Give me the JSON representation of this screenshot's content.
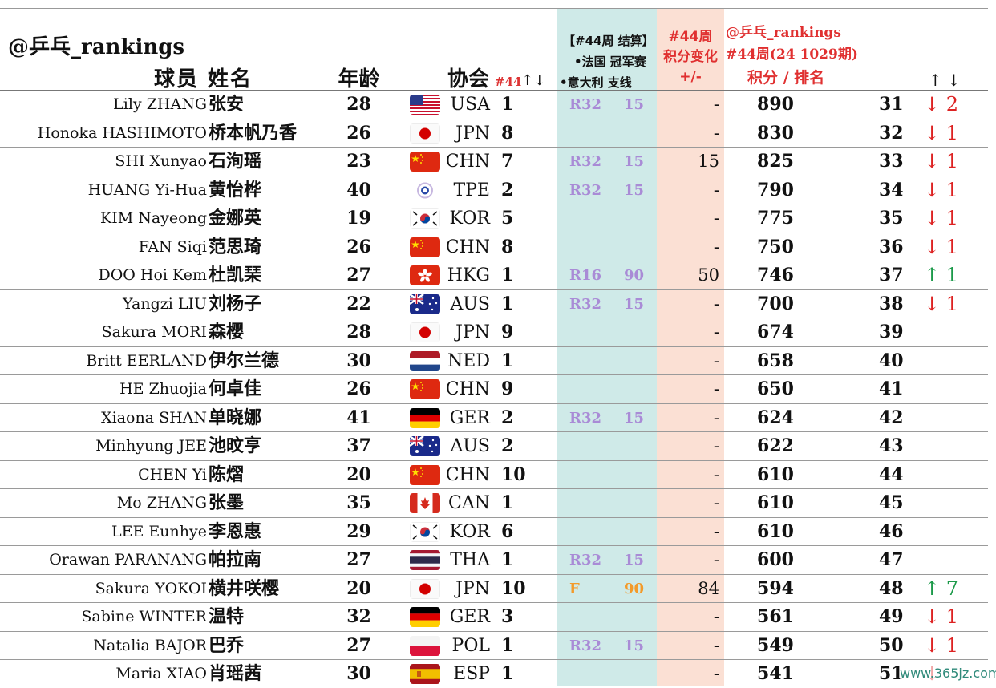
{
  "header": {
    "handle": "@乒乓_rankings",
    "col_name": "球员 姓名",
    "col_age": "年龄",
    "col_assoc": "协会",
    "col_rank44": "#44",
    "col_rank44_arrows": "↑↓",
    "week_title": "【#44周 结算】",
    "week_line1": "•法国 冠军赛",
    "week_line2": "•意大利 支线",
    "change_title1": "#44周",
    "change_title2": "积分变化",
    "change_title3": "+/-",
    "rank_title1": "@乒乓_rankings",
    "rank_title2": "#44周(24 1029期)",
    "rank_title3": "积分 /   排名",
    "move_arrows": "↑ ↓"
  },
  "colors": {
    "teal": "#cfeae8",
    "peach": "#fbe0d4",
    "red": "#e03030",
    "green": "#1c9a4a",
    "purple": "#a98bd6",
    "orange": "#f39a2a"
  },
  "rows": [
    {
      "en": "Lily ZHANG",
      "cn": "张安",
      "age": "28",
      "flag": "usa",
      "code": "USA",
      "crank": "1",
      "res": "R32",
      "pts": "15",
      "chg": "-",
      "score": "890",
      "rank": "31",
      "move": "↓ 2",
      "dir": "down"
    },
    {
      "en": "Honoka HASHIMOTO",
      "cn": "桥本帆乃香",
      "age": "26",
      "flag": "jpn",
      "code": "JPN",
      "crank": "8",
      "res": "",
      "pts": "",
      "chg": "-",
      "score": "830",
      "rank": "32",
      "move": "↓ 1",
      "dir": "down"
    },
    {
      "en": "SHI Xunyao",
      "cn": "石洵瑶",
      "age": "23",
      "flag": "chn",
      "code": "CHN",
      "crank": "7",
      "res": "R32",
      "pts": "15",
      "chg": "15",
      "score": "825",
      "rank": "33",
      "move": "↓ 1",
      "dir": "down"
    },
    {
      "en": "HUANG Yi-Hua",
      "cn": "黄怡桦",
      "age": "40",
      "flag": "tpe",
      "code": "TPE",
      "crank": "2",
      "res": "R32",
      "pts": "15",
      "chg": "-",
      "score": "790",
      "rank": "34",
      "move": "↓ 1",
      "dir": "down"
    },
    {
      "en": "KIM Nayeong",
      "cn": "金娜英",
      "age": "19",
      "flag": "kor",
      "code": "KOR",
      "crank": "5",
      "res": "",
      "pts": "",
      "chg": "-",
      "score": "775",
      "rank": "35",
      "move": "↓ 1",
      "dir": "down"
    },
    {
      "en": "FAN Siqi",
      "cn": "范思琦",
      "age": "26",
      "flag": "chn",
      "code": "CHN",
      "crank": "8",
      "res": "",
      "pts": "",
      "chg": "-",
      "score": "750",
      "rank": "36",
      "move": "↓ 1",
      "dir": "down"
    },
    {
      "en": "DOO Hoi Kem",
      "cn": "杜凯琹",
      "age": "27",
      "flag": "hkg",
      "code": "HKG",
      "crank": "1",
      "res": "R16",
      "pts": "90",
      "chg": "50",
      "score": "746",
      "rank": "37",
      "move": "↑ 1",
      "dir": "up"
    },
    {
      "en": "Yangzi LIU",
      "cn": "刘杨子",
      "age": "22",
      "flag": "aus",
      "code": "AUS",
      "crank": "1",
      "res": "R32",
      "pts": "15",
      "chg": "-",
      "score": "700",
      "rank": "38",
      "move": "↓ 1",
      "dir": "down"
    },
    {
      "en": "Sakura MORI",
      "cn": "森樱",
      "age": "28",
      "flag": "jpn",
      "code": "JPN",
      "crank": "9",
      "res": "",
      "pts": "",
      "chg": "-",
      "score": "674",
      "rank": "39",
      "move": "",
      "dir": ""
    },
    {
      "en": "Britt EERLAND",
      "cn": "伊尔兰德",
      "age": "30",
      "flag": "ned",
      "code": "NED",
      "crank": "1",
      "res": "",
      "pts": "",
      "chg": "-",
      "score": "658",
      "rank": "40",
      "move": "",
      "dir": ""
    },
    {
      "en": "HE Zhuojia",
      "cn": "何卓佳",
      "age": "26",
      "flag": "chn",
      "code": "CHN",
      "crank": "9",
      "res": "",
      "pts": "",
      "chg": "-",
      "score": "650",
      "rank": "41",
      "move": "",
      "dir": ""
    },
    {
      "en": "Xiaona SHAN",
      "cn": "单晓娜",
      "age": "41",
      "flag": "ger",
      "code": "GER",
      "crank": "2",
      "res": "R32",
      "pts": "15",
      "chg": "-",
      "score": "624",
      "rank": "42",
      "move": "",
      "dir": ""
    },
    {
      "en": "Minhyung JEE",
      "cn": "池旼亨",
      "age": "37",
      "flag": "aus",
      "code": "AUS",
      "crank": "2",
      "res": "",
      "pts": "",
      "chg": "-",
      "score": "622",
      "rank": "43",
      "move": "",
      "dir": ""
    },
    {
      "en": "CHEN Yi",
      "cn": "陈熠",
      "age": "20",
      "flag": "chn",
      "code": "CHN",
      "crank": "10",
      "res": "",
      "pts": "",
      "chg": "-",
      "score": "610",
      "rank": "44",
      "move": "",
      "dir": ""
    },
    {
      "en": "Mo ZHANG",
      "cn": "张墨",
      "age": "35",
      "flag": "can",
      "code": "CAN",
      "crank": "1",
      "res": "",
      "pts": "",
      "chg": "-",
      "score": "610",
      "rank": "45",
      "move": "",
      "dir": ""
    },
    {
      "en": "LEE Eunhye",
      "cn": "李恩惠",
      "age": "29",
      "flag": "kor",
      "code": "KOR",
      "crank": "6",
      "res": "",
      "pts": "",
      "chg": "-",
      "score": "610",
      "rank": "46",
      "move": "",
      "dir": ""
    },
    {
      "en": "Orawan PARANANG",
      "cn": "帕拉南",
      "age": "27",
      "flag": "tha",
      "code": "THA",
      "crank": "1",
      "res": "R32",
      "pts": "15",
      "chg": "-",
      "score": "600",
      "rank": "47",
      "move": "",
      "dir": ""
    },
    {
      "en": "Sakura YOKOI",
      "cn": "横井咲樱",
      "age": "20",
      "flag": "jpn",
      "code": "JPN",
      "crank": "10",
      "res": "F",
      "pts": "90",
      "chg": "84",
      "score": "594",
      "rank": "48",
      "move": "↑ 7",
      "dir": "up",
      "gold": true
    },
    {
      "en": "Sabine WINTER",
      "cn": "温特",
      "age": "32",
      "flag": "ger",
      "code": "GER",
      "crank": "3",
      "res": "",
      "pts": "",
      "chg": "-",
      "score": "561",
      "rank": "49",
      "move": "↓ 1",
      "dir": "down"
    },
    {
      "en": "Natalia BAJOR",
      "cn": "巴乔",
      "age": "27",
      "flag": "pol",
      "code": "POL",
      "crank": "1",
      "res": "R32",
      "pts": "15",
      "chg": "-",
      "score": "549",
      "rank": "50",
      "move": "↓ 1",
      "dir": "down"
    },
    {
      "en": "Maria XIAO",
      "cn": "肖瑶茜",
      "age": "30",
      "flag": "esp",
      "code": "ESP",
      "crank": "1",
      "res": "",
      "pts": "",
      "chg": "-",
      "score": "541",
      "rank": "51",
      "move": "↓",
      "dir": "down"
    }
  ],
  "watermark": "www.365jz.com"
}
